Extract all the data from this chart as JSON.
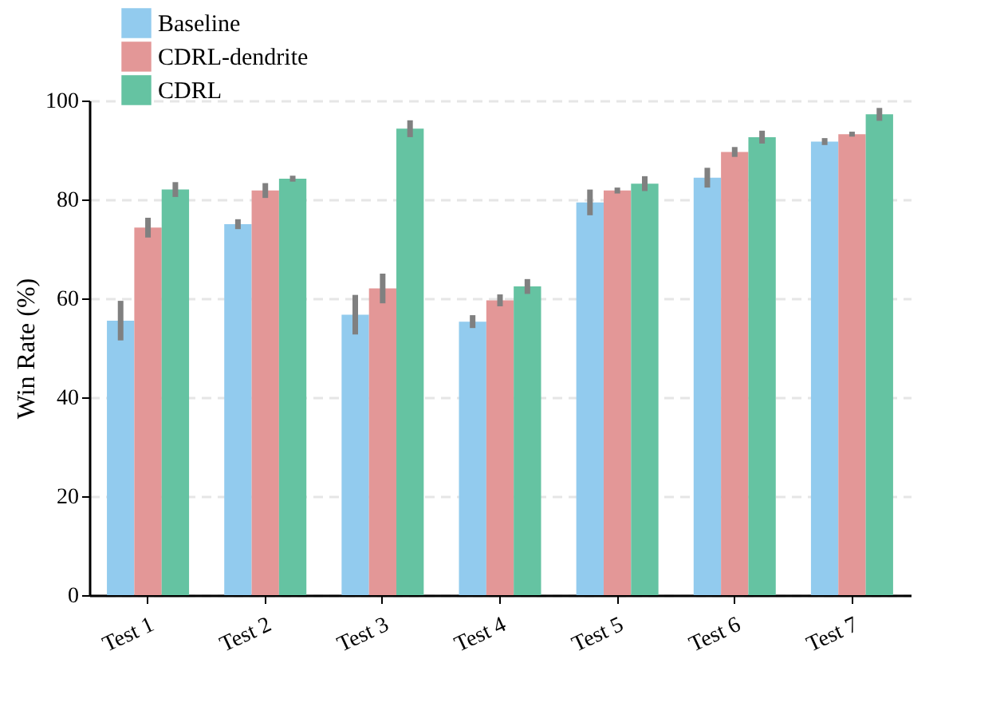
{
  "chart_data": {
    "type": "bar",
    "ylabel": "Win Rate (%)",
    "categories": [
      "Test 1",
      "Test 2",
      "Test 3",
      "Test 4",
      "Test 5",
      "Test 6",
      "Test 7"
    ],
    "series": [
      {
        "name": "Baseline",
        "color": "#92cbee",
        "values": [
          55.5,
          75.0,
          56.7,
          55.3,
          79.4,
          84.4,
          91.7
        ],
        "errors": [
          4.0,
          1.0,
          4.0,
          1.3,
          2.6,
          2.0,
          0.7
        ]
      },
      {
        "name": "CDRL-dendrite",
        "color": "#e39797",
        "values": [
          74.3,
          81.8,
          62.0,
          59.6,
          81.8,
          89.6,
          93.2
        ],
        "errors": [
          2.0,
          1.5,
          3.0,
          1.2,
          0.6,
          1.0,
          0.5
        ]
      },
      {
        "name": "CDRL",
        "color": "#65c3a2",
        "values": [
          82.0,
          84.2,
          94.3,
          62.4,
          83.2,
          92.6,
          97.2
        ],
        "errors": [
          1.5,
          0.6,
          1.7,
          1.5,
          1.5,
          1.3,
          1.3
        ]
      }
    ],
    "ylim": [
      0,
      100
    ],
    "yticks": [
      0,
      20,
      40,
      60,
      80,
      100
    ],
    "grid": "y",
    "legend": "top left"
  }
}
